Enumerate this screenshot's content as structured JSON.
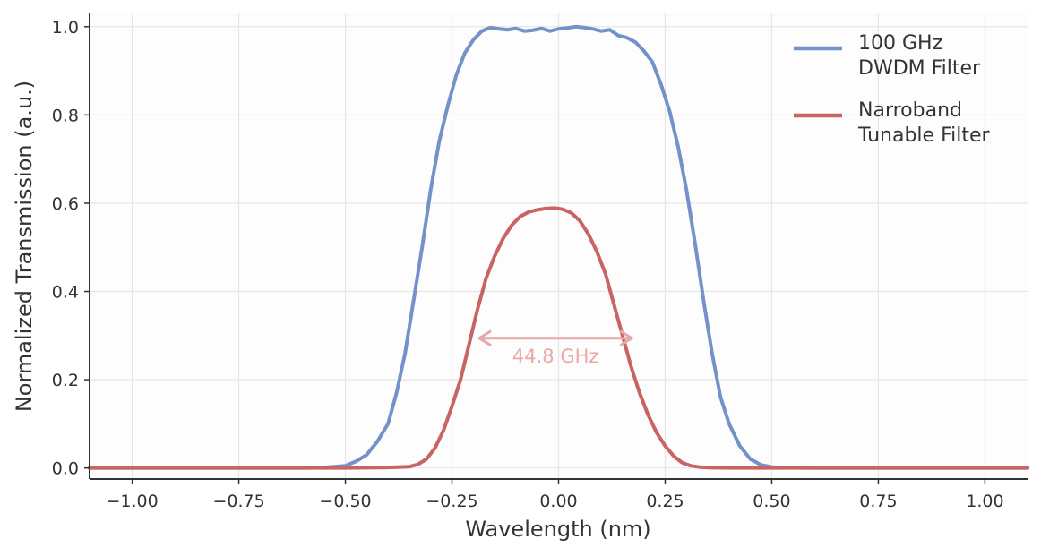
{
  "chart_data": {
    "type": "line",
    "title": "",
    "xlabel": "Wavelength (nm)",
    "ylabel": "Normalized Transmission (a.u.)",
    "xlim": [
      -1.1,
      1.1
    ],
    "ylim": [
      -0.025,
      1.03
    ],
    "xticks": [
      -1.0,
      -0.75,
      -0.5,
      -0.25,
      0.0,
      0.25,
      0.5,
      0.75,
      1.0
    ],
    "xtick_labels": [
      "−1.00",
      "−0.75",
      "−0.50",
      "−0.25",
      "0.00",
      "0.25",
      "0.50",
      "0.75",
      "1.00"
    ],
    "yticks": [
      0.0,
      0.2,
      0.4,
      0.6,
      0.8,
      1.0
    ],
    "ytick_labels": [
      "0.0",
      "0.2",
      "0.4",
      "0.6",
      "0.8",
      "1.0"
    ],
    "grid": true,
    "legend_position": "top-right",
    "series": [
      {
        "name": "100 GHz\nDWDM Filter",
        "legend_lines": [
          "100 GHz",
          "DWDM Filter"
        ],
        "color": "#7393c8",
        "x": [
          -1.1,
          -0.6,
          -0.55,
          -0.5,
          -0.475,
          -0.45,
          -0.425,
          -0.4,
          -0.38,
          -0.36,
          -0.34,
          -0.32,
          -0.3,
          -0.28,
          -0.26,
          -0.24,
          -0.22,
          -0.2,
          -0.18,
          -0.16,
          -0.14,
          -0.12,
          -0.1,
          -0.08,
          -0.06,
          -0.04,
          -0.02,
          0.0,
          0.02,
          0.04,
          0.06,
          0.08,
          0.1,
          0.12,
          0.14,
          0.16,
          0.18,
          0.2,
          0.22,
          0.24,
          0.26,
          0.28,
          0.3,
          0.32,
          0.34,
          0.36,
          0.38,
          0.4,
          0.425,
          0.45,
          0.475,
          0.5,
          0.55,
          0.6,
          1.1
        ],
        "y": [
          0.0,
          0.0,
          0.001,
          0.005,
          0.015,
          0.03,
          0.06,
          0.1,
          0.17,
          0.26,
          0.38,
          0.5,
          0.63,
          0.74,
          0.82,
          0.89,
          0.94,
          0.97,
          0.99,
          0.998,
          0.995,
          0.993,
          0.996,
          0.99,
          0.992,
          0.996,
          0.99,
          0.995,
          0.997,
          1.0,
          0.998,
          0.995,
          0.99,
          0.993,
          0.98,
          0.975,
          0.965,
          0.945,
          0.92,
          0.87,
          0.81,
          0.73,
          0.63,
          0.51,
          0.38,
          0.26,
          0.16,
          0.1,
          0.05,
          0.02,
          0.007,
          0.002,
          0.0005,
          0.0,
          0.0
        ]
      },
      {
        "name": "Narroband\nTunable Filter",
        "legend_lines": [
          "Narroband",
          "Tunable Filter"
        ],
        "color": "#c86464",
        "x": [
          -1.1,
          -0.5,
          -0.4,
          -0.35,
          -0.33,
          -0.31,
          -0.29,
          -0.27,
          -0.25,
          -0.23,
          -0.21,
          -0.19,
          -0.17,
          -0.15,
          -0.13,
          -0.11,
          -0.09,
          -0.07,
          -0.05,
          -0.03,
          -0.01,
          0.0,
          0.01,
          0.03,
          0.05,
          0.07,
          0.09,
          0.11,
          0.13,
          0.15,
          0.17,
          0.19,
          0.21,
          0.23,
          0.25,
          0.27,
          0.29,
          0.31,
          0.33,
          0.35,
          0.4,
          0.5,
          1.1
        ],
        "y": [
          0.0,
          0.0,
          0.001,
          0.003,
          0.008,
          0.02,
          0.045,
          0.085,
          0.14,
          0.2,
          0.28,
          0.36,
          0.43,
          0.48,
          0.52,
          0.55,
          0.57,
          0.58,
          0.585,
          0.588,
          0.589,
          0.588,
          0.586,
          0.578,
          0.56,
          0.53,
          0.49,
          0.44,
          0.37,
          0.3,
          0.23,
          0.17,
          0.12,
          0.08,
          0.05,
          0.027,
          0.012,
          0.005,
          0.002,
          0.0008,
          0.0002,
          0.0,
          0.0
        ]
      }
    ],
    "annotations": [
      {
        "text": "44.8 GHz",
        "type": "double-arrow",
        "x_start": -0.186,
        "x_end": 0.172,
        "y": 0.294,
        "color": "#e6a8a8"
      }
    ]
  }
}
